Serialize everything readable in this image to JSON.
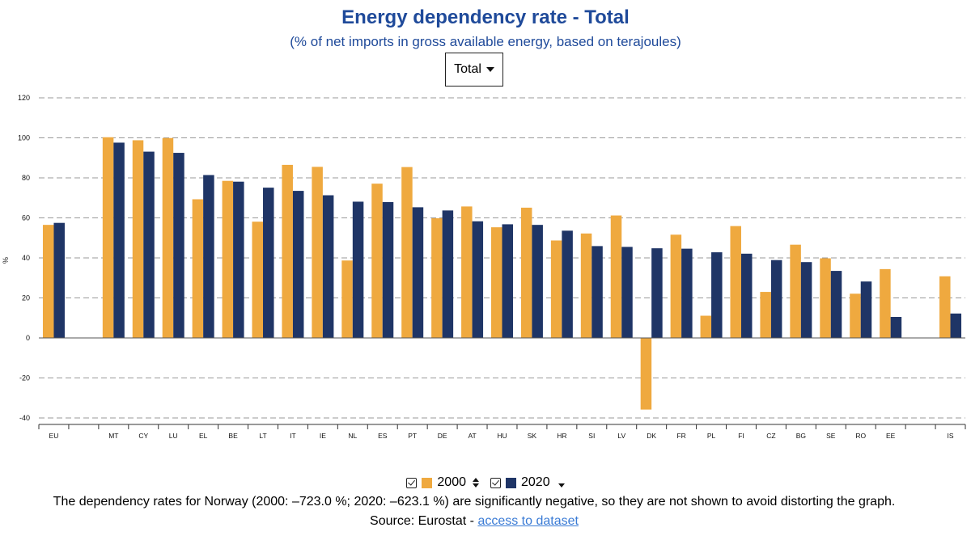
{
  "header": {
    "title": "Energy dependency rate - Total",
    "subtitle": "(% of net imports in gross available energy, based on terajoules)"
  },
  "dropdown": {
    "selected": "Total"
  },
  "legend": {
    "items": [
      {
        "label": "2000",
        "color": "#efa93f",
        "icon": "sort-both-icon"
      },
      {
        "label": "2020",
        "color": "#1f3566",
        "icon": "sort-down-icon"
      }
    ]
  },
  "footer": {
    "note": "The dependency rates for Norway (2000: –723.0 %; 2020: –623.1 %) are significantly negative, so they are not shown to avoid distorting the graph.",
    "source_prefix": "Source: Eurostat - ",
    "source_link": "access to dataset"
  },
  "chart_data": {
    "type": "bar",
    "ylabel": "%",
    "ylim": [
      -40,
      120
    ],
    "yticks": [
      -40,
      -20,
      0,
      20,
      40,
      60,
      80,
      100,
      120
    ],
    "grid": true,
    "categories": [
      "EU",
      "",
      "MT",
      "CY",
      "LU",
      "EL",
      "BE",
      "LT",
      "IT",
      "IE",
      "NL",
      "ES",
      "PT",
      "DE",
      "AT",
      "HU",
      "SK",
      "HR",
      "SI",
      "LV",
      "DK",
      "FR",
      "PL",
      "FI",
      "CZ",
      "BG",
      "SE",
      "RO",
      "EE",
      "",
      "IS"
    ],
    "series": [
      {
        "name": "2000",
        "color": "#efa93f",
        "values": [
          56.5,
          null,
          100.3,
          98.8,
          99.9,
          69.3,
          78.5,
          58.1,
          86.5,
          85.5,
          38.7,
          77.1,
          85.4,
          59.8,
          65.7,
          55.3,
          65.1,
          48.7,
          52.2,
          61.2,
          -35.8,
          51.6,
          11.1,
          55.9,
          23.0,
          46.6,
          39.8,
          22.1,
          34.4,
          null,
          30.8
        ]
      },
      {
        "name": "2020",
        "color": "#1f3566",
        "values": [
          57.5,
          null,
          97.6,
          93.1,
          92.5,
          81.4,
          78.1,
          75.1,
          73.5,
          71.3,
          68.1,
          67.9,
          65.3,
          63.7,
          58.3,
          56.8,
          56.5,
          53.6,
          45.9,
          45.5,
          44.8,
          44.6,
          42.8,
          42.1,
          38.9,
          37.9,
          33.5,
          28.2,
          10.5,
          null,
          12.2
        ]
      }
    ]
  }
}
